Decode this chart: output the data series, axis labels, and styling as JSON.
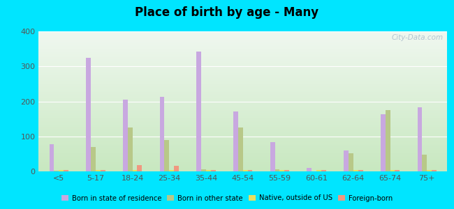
{
  "title": "Place of birth by age - Many",
  "categories": [
    "<5",
    "5-17",
    "18-24",
    "25-34",
    "35-44",
    "45-54",
    "55-59",
    "60-61",
    "62-64",
    "65-74",
    "75+"
  ],
  "series": {
    "Born in state of residence": [
      78,
      325,
      205,
      212,
      342,
      172,
      84,
      10,
      60,
      163,
      184
    ],
    "Born in other state": [
      2,
      70,
      125,
      90,
      5,
      125,
      6,
      0,
      52,
      175,
      48
    ],
    "Native, outside of US": [
      3,
      3,
      3,
      3,
      3,
      3,
      3,
      3,
      3,
      3,
      3
    ],
    "Foreign-born": [
      3,
      3,
      18,
      15,
      3,
      3,
      3,
      3,
      3,
      3,
      3
    ]
  },
  "colors": {
    "Born in state of residence": "#c8a8e0",
    "Born in other state": "#b8c888",
    "Native, outside of US": "#e8e060",
    "Foreign-born": "#f09880"
  },
  "ylim": [
    0,
    400
  ],
  "yticks": [
    0,
    100,
    200,
    300,
    400
  ],
  "outer_background": "#00e5ff",
  "watermark": "City-Data.com",
  "bg_top_color": "#f0f8f0",
  "bg_bottom_color": "#c8e8c0"
}
